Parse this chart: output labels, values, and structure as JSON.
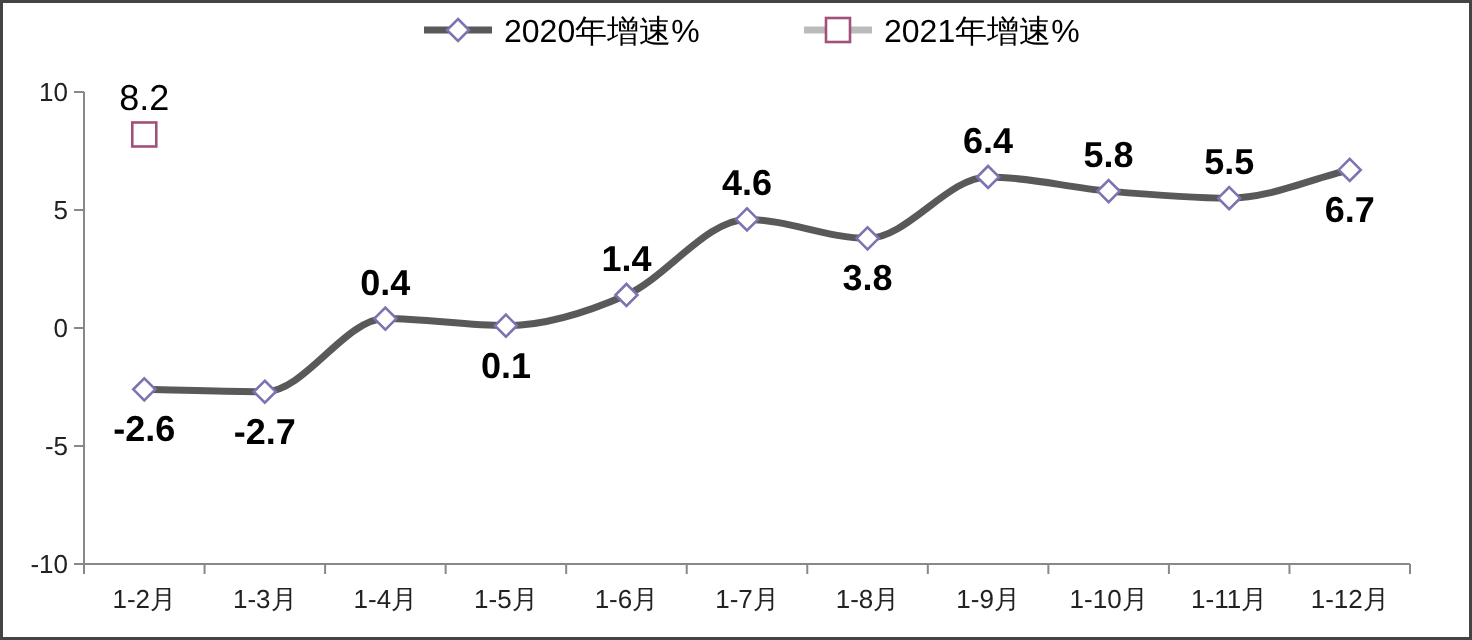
{
  "chart_data": {
    "type": "line",
    "categories": [
      "1-2月",
      "1-3月",
      "1-4月",
      "1-5月",
      "1-6月",
      "1-7月",
      "1-8月",
      "1-9月",
      "1-10月",
      "1-11月",
      "1-12月"
    ],
    "series": [
      {
        "name": "2020年增速%",
        "color": "#595959",
        "marker": "diamond",
        "values": [
          -2.6,
          -2.7,
          0.4,
          0.1,
          1.4,
          4.6,
          3.8,
          6.4,
          5.8,
          5.5,
          6.7
        ]
      },
      {
        "name": "2021年增速%",
        "type": "scatter",
        "color": "#a0507a",
        "marker": "square",
        "values": [
          8.2,
          null,
          null,
          null,
          null,
          null,
          null,
          null,
          null,
          null,
          null
        ]
      }
    ],
    "ylim": [
      -10,
      10
    ],
    "yticks": [
      -10,
      -5,
      0,
      5,
      10
    ],
    "grid": false,
    "legend": "top",
    "data_labels": true
  }
}
